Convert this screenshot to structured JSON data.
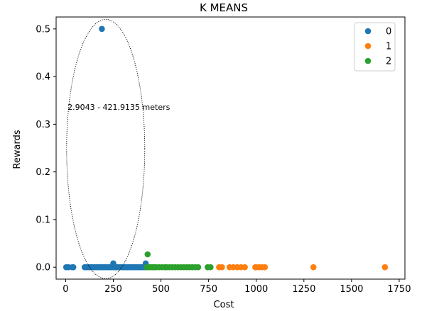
{
  "chart_data": {
    "type": "scatter",
    "title": "K MEANS",
    "xlabel": "Cost",
    "ylabel": "Rewards",
    "xlim": [
      -50,
      1780
    ],
    "ylim": [
      -0.025,
      0.525
    ],
    "xticks": [
      0,
      250,
      500,
      750,
      1000,
      1250,
      1500,
      1750
    ],
    "yticks": [
      0.0,
      0.1,
      0.2,
      0.3,
      0.4,
      0.5
    ],
    "xtick_labels": [
      "0",
      "250",
      "500",
      "750",
      "1000",
      "1250",
      "1500",
      "1750"
    ],
    "ytick_labels": [
      "0.0",
      "0.1",
      "0.2",
      "0.3",
      "0.4",
      "0.5"
    ],
    "grid": false,
    "legend_position": "top-right",
    "series": [
      {
        "name": "0",
        "color": "#1f77b4",
        "points": [
          [
            2.9,
            0.0
          ],
          [
            15,
            0.0
          ],
          [
            35,
            0.0
          ],
          [
            40,
            0.0
          ],
          [
            100,
            0.0
          ],
          [
            110,
            0.0
          ],
          [
            120,
            0.0
          ],
          [
            130,
            0.0
          ],
          [
            140,
            0.0
          ],
          [
            150,
            0.0
          ],
          [
            160,
            0.0
          ],
          [
            170,
            0.0
          ],
          [
            180,
            0.0
          ],
          [
            190,
            0.0
          ],
          [
            200,
            0.0
          ],
          [
            210,
            0.0
          ],
          [
            220,
            0.0
          ],
          [
            230,
            0.0
          ],
          [
            240,
            0.0
          ],
          [
            250,
            0.0
          ],
          [
            260,
            0.0
          ],
          [
            270,
            0.0
          ],
          [
            280,
            0.0
          ],
          [
            290,
            0.0
          ],
          [
            300,
            0.0
          ],
          [
            310,
            0.0
          ],
          [
            320,
            0.0
          ],
          [
            330,
            0.0
          ],
          [
            340,
            0.0
          ],
          [
            350,
            0.0
          ],
          [
            360,
            0.0
          ],
          [
            370,
            0.0
          ],
          [
            380,
            0.0
          ],
          [
            390,
            0.0
          ],
          [
            400,
            0.0
          ],
          [
            410,
            0.0
          ],
          [
            421.9,
            0.0
          ],
          [
            250,
            0.008
          ],
          [
            420,
            0.008
          ],
          [
            190,
            0.5
          ]
        ]
      },
      {
        "name": "1",
        "color": "#ff7f0e",
        "points": [
          [
            805,
            0.0
          ],
          [
            820,
            0.0
          ],
          [
            860,
            0.0
          ],
          [
            880,
            0.0
          ],
          [
            900,
            0.0
          ],
          [
            920,
            0.0
          ],
          [
            940,
            0.0
          ],
          [
            995,
            0.0
          ],
          [
            1000,
            0.0
          ],
          [
            1015,
            0.0
          ],
          [
            1030,
            0.0
          ],
          [
            1045,
            0.0
          ],
          [
            1300,
            0.0
          ],
          [
            1675,
            0.0
          ]
        ]
      },
      {
        "name": "2",
        "color": "#2ca02c",
        "points": [
          [
            430,
            0.027
          ],
          [
            425,
            0.0
          ],
          [
            435,
            0.0
          ],
          [
            445,
            0.0
          ],
          [
            455,
            0.0
          ],
          [
            465,
            0.0
          ],
          [
            475,
            0.0
          ],
          [
            490,
            0.0
          ],
          [
            505,
            0.0
          ],
          [
            520,
            0.0
          ],
          [
            530,
            0.0
          ],
          [
            545,
            0.0
          ],
          [
            560,
            0.0
          ],
          [
            575,
            0.0
          ],
          [
            590,
            0.0
          ],
          [
            605,
            0.0
          ],
          [
            620,
            0.0
          ],
          [
            635,
            0.0
          ],
          [
            650,
            0.0
          ],
          [
            665,
            0.0
          ],
          [
            680,
            0.0
          ],
          [
            695,
            0.0
          ],
          [
            745,
            0.0
          ],
          [
            760,
            0.0
          ]
        ]
      }
    ],
    "annotations": [
      {
        "text": "2.9043 - 421.9135 meters",
        "x": 10,
        "y": 0.33,
        "ellipse": {
          "cx": 210,
          "cy": 0.248,
          "rx": 410,
          "ry": 0.272
        }
      }
    ]
  }
}
